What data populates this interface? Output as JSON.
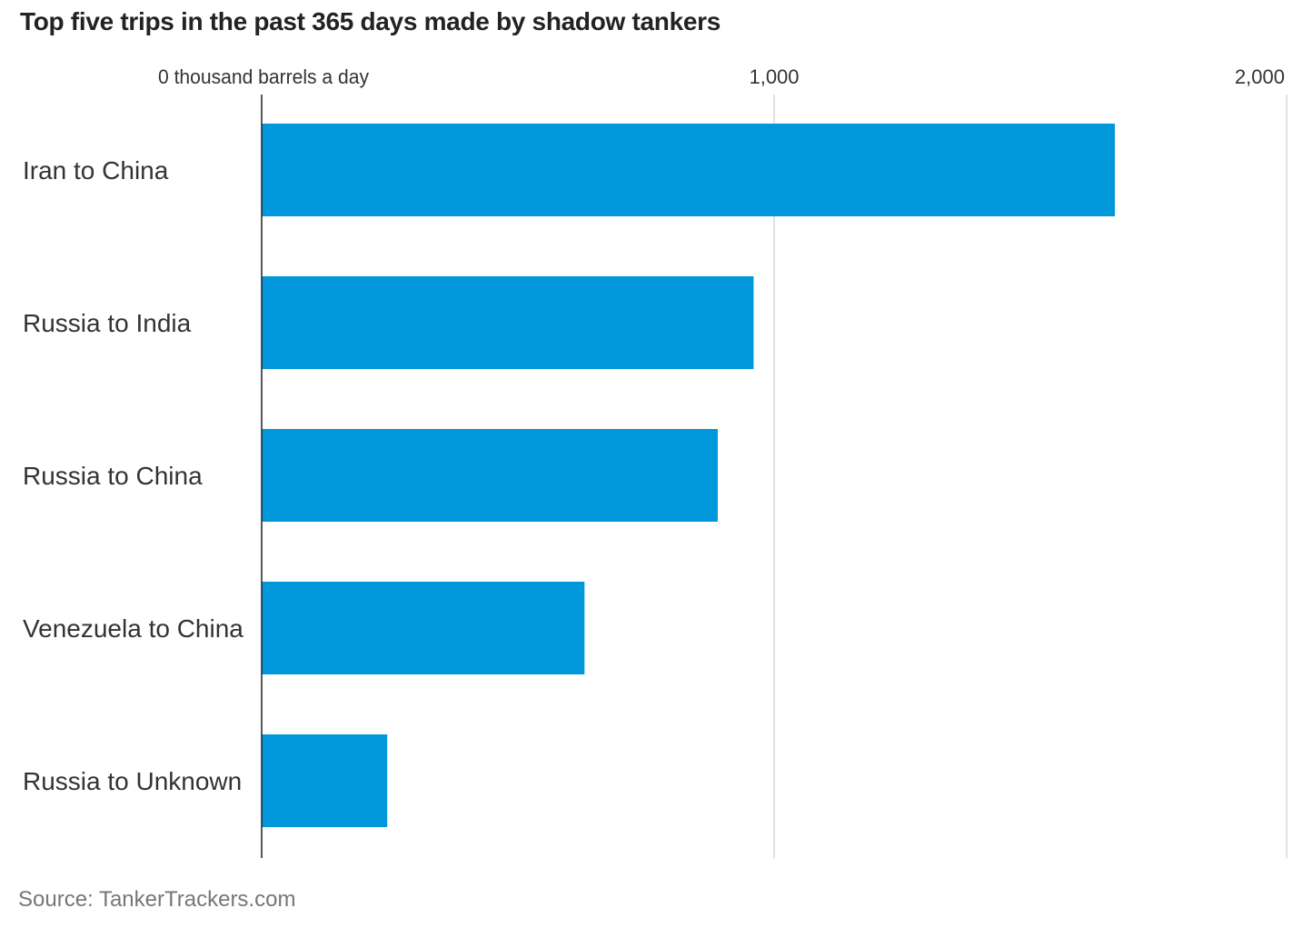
{
  "title": "Top five trips in the past 365 days made by shadow tankers",
  "source": "Source: TankerTrackers.com",
  "chart_data": {
    "type": "bar",
    "orientation": "horizontal",
    "title": "Top five trips in the past 365 days made by shadow tankers",
    "xlabel": "thousand barrels a day",
    "ylabel": "",
    "xlim": [
      0,
      2000
    ],
    "ticks": [
      {
        "value": 0,
        "label": "0 thousand barrels a day"
      },
      {
        "value": 1000,
        "label": "1,000"
      },
      {
        "value": 2000,
        "label": "2,000"
      }
    ],
    "categories": [
      "Iran to China",
      "Russia to India",
      "Russia to China",
      "Venezuela to China",
      "Russia to Unknown"
    ],
    "values": [
      1665,
      960,
      890,
      630,
      245
    ],
    "bar_color": "#0097DB",
    "grid": true,
    "legend": "none"
  }
}
